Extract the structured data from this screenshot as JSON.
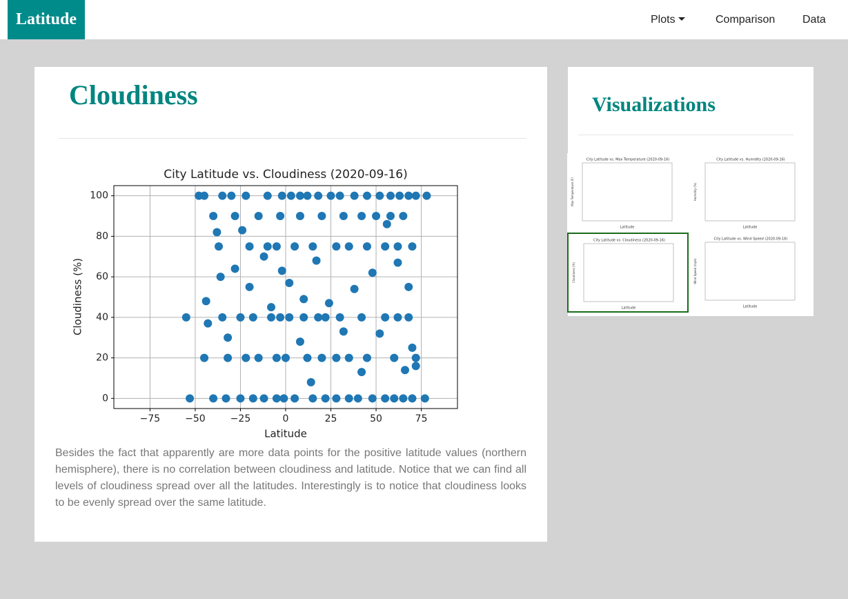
{
  "navbar": {
    "brand": "Latitude",
    "links": [
      "Plots",
      "Comparison",
      "Data"
    ]
  },
  "main": {
    "title": "Cloudiness",
    "description": "Besides the fact that apparently are more data points for the positive latitude values (northern hemisphere), there is no correlation between cloudiness and latitude. Notice that we can find all levels of cloudiness spread over all the latitudes. Interestingly is to notice that cloudiness looks to be evenly spread over the same latitude."
  },
  "chart_data": {
    "type": "scatter",
    "title": "City Latitude vs. Cloudiness (2020-09-16)",
    "x_label": "Latitude",
    "y_label": "Cloudiness (%)",
    "color": "#1f77b4",
    "grid": true,
    "xlim": [
      -95,
      95
    ],
    "ylim": [
      -5,
      105
    ],
    "xticks": [
      {
        "value": -75,
        "label": "−75"
      },
      {
        "value": -50,
        "label": "−50"
      },
      {
        "value": -25,
        "label": "−25"
      },
      0,
      25,
      50,
      75
    ],
    "yticks": [
      0,
      20,
      40,
      60,
      80,
      100
    ],
    "x": [
      -48,
      -45,
      -35,
      -30,
      -22,
      -10,
      -2,
      3,
      8,
      12,
      18,
      25,
      30,
      38,
      45,
      52,
      58,
      63,
      68,
      72,
      78,
      -53,
      -40,
      -33,
      -25,
      -18,
      -12,
      -5,
      -1,
      5,
      15,
      22,
      28,
      35,
      40,
      48,
      55,
      60,
      65,
      70,
      77,
      -55,
      -35,
      -25,
      -18,
      -8,
      -3,
      2,
      10,
      18,
      22,
      30,
      42,
      55,
      62,
      68,
      -45,
      -32,
      -22,
      -15,
      -5,
      0,
      12,
      20,
      28,
      35,
      45,
      60,
      72,
      -37,
      -20,
      -10,
      -5,
      5,
      15,
      28,
      35,
      45,
      55,
      62,
      70,
      -40,
      -28,
      -15,
      -3,
      8,
      20,
      32,
      42,
      50,
      58,
      65,
      -44,
      -43,
      -38,
      -36,
      -32,
      -28,
      -24,
      -20,
      -12,
      -8,
      -2,
      2,
      8,
      10,
      14,
      17,
      24,
      32,
      38,
      42,
      48,
      52,
      56,
      62,
      66,
      70,
      72,
      68
    ],
    "y": [
      100,
      100,
      100,
      100,
      100,
      100,
      100,
      100,
      100,
      100,
      100,
      100,
      100,
      100,
      100,
      100,
      100,
      100,
      100,
      100,
      100,
      0,
      0,
      0,
      0,
      0,
      0,
      0,
      0,
      0,
      0,
      0,
      0,
      0,
      0,
      0,
      0,
      0,
      0,
      0,
      0,
      40,
      40,
      40,
      40,
      40,
      40,
      40,
      40,
      40,
      40,
      40,
      40,
      40,
      40,
      40,
      20,
      20,
      20,
      20,
      20,
      20,
      20,
      20,
      20,
      20,
      20,
      20,
      20,
      75,
      75,
      75,
      75,
      75,
      75,
      75,
      75,
      75,
      75,
      75,
      75,
      90,
      90,
      90,
      90,
      90,
      90,
      90,
      90,
      90,
      90,
      90,
      48,
      37,
      82,
      60,
      30,
      64,
      83,
      55,
      70,
      45,
      63,
      57,
      28,
      49,
      8,
      68,
      47,
      33,
      54,
      13,
      62,
      32,
      86,
      67,
      14,
      25,
      16,
      55
    ]
  },
  "sidebar": {
    "title": "Visualizations",
    "thumbnails": [
      {
        "title": "City Latitude vs. Max Temperature (2020-09-16)",
        "x_label": "Latitude",
        "y_label": "Max Temperature (F)"
      },
      {
        "title": "City Latitude vs. Humidity (2020-09-16)",
        "x_label": "Latitude",
        "y_label": "Humidity (%)"
      },
      {
        "title": "City Latitude vs. Cloudiness (2020-09-16)",
        "x_label": "Latitude",
        "y_label": "Cloudiness (%)"
      },
      {
        "title": "City Latitude vs. Wind Speed (2020-09-16)",
        "x_label": "Latitude",
        "y_label": "Wind Speed (mph)"
      }
    ]
  }
}
